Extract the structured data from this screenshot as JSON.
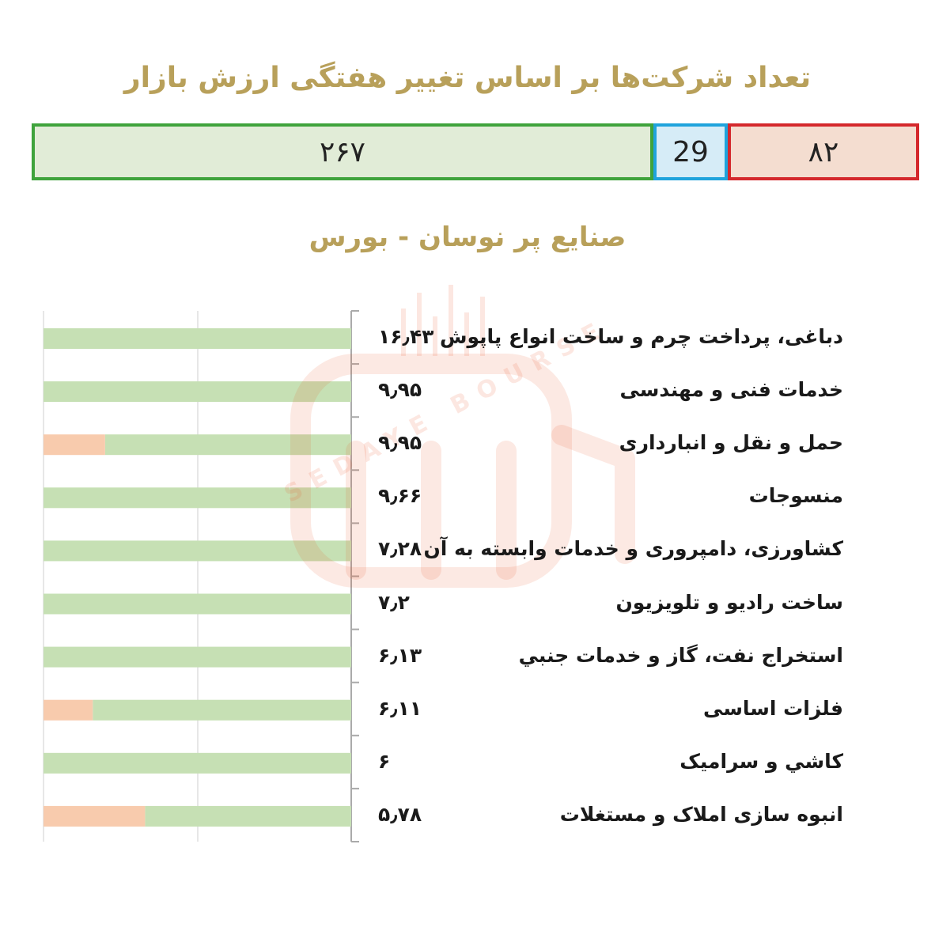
{
  "header": {
    "title": "تعداد شرکت‌ها بر اساس تغییر هفتگی ارزش بازار",
    "subtitle": "صنایع پر نوسان - بورس"
  },
  "status_bar": {
    "positive": "۲۶۷",
    "neutral": "29",
    "negative": "۸۲"
  },
  "colors": {
    "title": "#b8a05a",
    "positive_fill": "#e1ecd7",
    "positive_border": "#3fa33c",
    "neutral_fill": "#d6ecf7",
    "neutral_border": "#1fa3dc",
    "negative_fill": "#f4ddd0",
    "negative_border": "#d4282c",
    "bar_green": "#c6e0b4",
    "bar_orange": "#f8cbad",
    "axis": "#aaaaaa"
  },
  "watermark": {
    "text": "SEDAYE BOURSE"
  },
  "chart_data": {
    "type": "bar",
    "orientation": "horizontal",
    "categories": [
      "دباغی، پرداخت چرم و ساخت انواع پاپوش",
      "خدمات فنی و مهندسی",
      "حمل و نقل و انبارداری",
      "منسوجات",
      "کشاورزی، دامپروری و خدمات وابسته به آن",
      "ساخت رادیو و تلویزیون",
      "استخراج نفت، گاز و خدمات جنبي",
      "فلزات اساسی",
      "کاشي و سرامیک",
      "انبوه سازی املاک و مستغلات"
    ],
    "value_labels": [
      "۱۶٫۴۳",
      "۹٫۹۵",
      "۹٫۹۵",
      "۹٫۶۶",
      "۷٫۲۸",
      "۷٫۲",
      "۶٫۱۳",
      "۶٫۱۱",
      "۶",
      "۵٫۷۸"
    ],
    "values": [
      16.43,
      9.95,
      9.95,
      9.66,
      7.28,
      7.2,
      6.13,
      6.11,
      6,
      5.78
    ],
    "series": [
      {
        "name": "",
        "color": "#c6e0b4",
        "values": [
          100,
          100,
          80,
          100,
          100,
          100,
          100,
          84,
          100,
          67
        ]
      },
      {
        "name": "",
        "color": "#f8cbad",
        "values": [
          0,
          0,
          20,
          0,
          0,
          0,
          0,
          16,
          0,
          33
        ]
      }
    ],
    "xlim": [
      0,
      100
    ],
    "xdirection": "reversed",
    "stacked": true,
    "gridlines": true,
    "legend": "none",
    "title": "",
    "xlabel": "",
    "ylabel": ""
  }
}
